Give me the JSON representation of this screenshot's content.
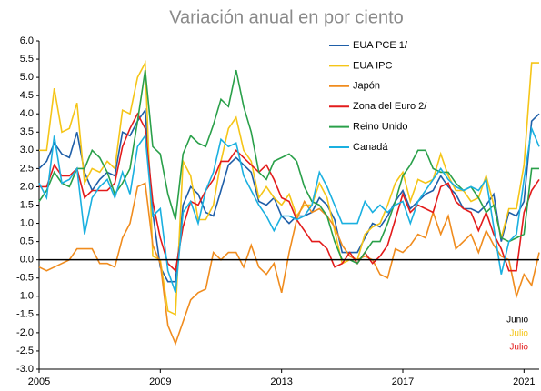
{
  "chart_data": {
    "type": "line",
    "title": "Variación anual en por ciento",
    "x": [
      2005,
      2005.25,
      2005.5,
      2005.75,
      2006,
      2006.25,
      2006.5,
      2006.75,
      2007,
      2007.25,
      2007.5,
      2007.75,
      2008,
      2008.25,
      2008.5,
      2008.75,
      2009,
      2009.25,
      2009.5,
      2009.75,
      2010,
      2010.25,
      2010.5,
      2010.75,
      2011,
      2011.25,
      2011.5,
      2011.75,
      2012,
      2012.25,
      2012.5,
      2012.75,
      2013,
      2013.25,
      2013.5,
      2013.75,
      2014,
      2014.25,
      2014.5,
      2014.75,
      2015,
      2015.25,
      2015.5,
      2015.75,
      2016,
      2016.25,
      2016.5,
      2016.75,
      2017,
      2017.25,
      2017.5,
      2017.75,
      2018,
      2018.25,
      2018.5,
      2018.75,
      2019,
      2019.25,
      2019.5,
      2019.75,
      2020,
      2020.25,
      2020.5,
      2020.75,
      2021,
      2021.25,
      2021.5
    ],
    "series": [
      {
        "name": "EUA PCE 1/",
        "color": "#1f5fa8",
        "values": [
          2.5,
          2.7,
          3.2,
          2.9,
          2.8,
          3.5,
          2.4,
          1.9,
          2.2,
          2.4,
          2.3,
          3.5,
          3.4,
          3.8,
          4.1,
          1.3,
          -0.2,
          -0.6,
          -0.6,
          1.5,
          2.0,
          1.8,
          1.3,
          1.2,
          1.9,
          2.6,
          2.8,
          2.6,
          2.4,
          1.6,
          1.5,
          1.7,
          1.2,
          1.0,
          1.2,
          1.2,
          1.3,
          1.7,
          1.5,
          1.1,
          0.2,
          0.2,
          0.2,
          0.6,
          1.0,
          0.9,
          1.2,
          1.6,
          1.9,
          1.4,
          1.6,
          1.8,
          1.9,
          2.3,
          2.0,
          1.8,
          1.4,
          1.4,
          1.3,
          1.5,
          1.8,
          0.5,
          1.3,
          1.2,
          1.6,
          3.8,
          4.0
        ]
      },
      {
        "name": "EUA IPC",
        "color": "#f5c518",
        "values": [
          3.0,
          3.0,
          4.7,
          3.5,
          3.6,
          4.3,
          2.1,
          2.5,
          2.4,
          2.7,
          2.5,
          4.1,
          4.0,
          5.0,
          5.4,
          0.1,
          0.0,
          -1.4,
          -1.5,
          2.7,
          2.3,
          1.1,
          1.1,
          1.5,
          2.7,
          3.6,
          3.9,
          3.0,
          2.7,
          1.7,
          2.0,
          1.7,
          1.5,
          1.8,
          1.2,
          1.5,
          1.5,
          2.1,
          1.7,
          0.8,
          -0.1,
          0.0,
          0.0,
          0.7,
          0.9,
          1.0,
          1.5,
          2.1,
          2.4,
          1.6,
          2.2,
          2.1,
          2.2,
          2.9,
          2.3,
          1.9,
          1.9,
          1.6,
          1.7,
          2.3,
          1.5,
          0.6,
          1.4,
          1.4,
          2.6,
          5.4,
          5.4
        ]
      },
      {
        "name": "Japón",
        "color": "#f08c1e",
        "values": [
          -0.2,
          -0.3,
          -0.2,
          -0.1,
          0.0,
          0.3,
          0.3,
          0.3,
          -0.1,
          -0.1,
          -0.2,
          0.6,
          1.0,
          2.0,
          2.1,
          0.4,
          -0.1,
          -1.8,
          -2.3,
          -1.7,
          -1.1,
          -0.9,
          -0.8,
          0.2,
          0.0,
          0.2,
          0.2,
          -0.2,
          0.4,
          -0.2,
          -0.4,
          -0.1,
          -0.9,
          0.2,
          1.1,
          1.6,
          1.3,
          1.4,
          1.2,
          0.9,
          0.4,
          0.1,
          0.0,
          0.1,
          0.0,
          -0.4,
          -0.5,
          0.3,
          0.2,
          0.4,
          0.7,
          0.6,
          1.3,
          0.7,
          1.2,
          0.3,
          0.5,
          0.7,
          0.2,
          0.8,
          0.4,
          0.1,
          0.0,
          -1.0,
          -0.4,
          -0.7,
          0.2
        ]
      },
      {
        "name": "Zona del Euro 2/",
        "color": "#e31b1b",
        "values": [
          2.0,
          2.0,
          2.6,
          2.3,
          2.3,
          2.5,
          1.7,
          1.9,
          1.9,
          1.9,
          2.1,
          3.1,
          3.6,
          4.0,
          3.6,
          1.6,
          0.6,
          -0.1,
          -0.3,
          0.9,
          1.6,
          1.5,
          1.9,
          2.2,
          2.7,
          2.7,
          3.0,
          2.8,
          2.6,
          2.4,
          2.6,
          2.2,
          1.7,
          1.6,
          1.1,
          0.8,
          0.5,
          0.5,
          0.3,
          -0.2,
          -0.1,
          0.2,
          -0.1,
          0.2,
          -0.1,
          0.1,
          0.4,
          1.1,
          1.8,
          1.3,
          1.5,
          1.4,
          1.3,
          2.0,
          2.1,
          1.6,
          1.4,
          1.3,
          0.8,
          1.3,
          0.7,
          0.3,
          -0.3,
          -0.3,
          1.3,
          1.9,
          2.2
        ]
      },
      {
        "name": "Reino Unido",
        "color": "#2aa04a",
        "values": [
          1.6,
          1.9,
          2.4,
          2.1,
          2.0,
          2.5,
          2.5,
          3.0,
          2.8,
          2.4,
          1.8,
          2.1,
          2.5,
          3.8,
          5.2,
          3.1,
          2.9,
          1.8,
          1.1,
          2.9,
          3.4,
          3.2,
          3.1,
          3.7,
          4.4,
          4.2,
          5.2,
          4.2,
          3.5,
          2.4,
          2.2,
          2.7,
          2.8,
          2.9,
          2.7,
          2.0,
          1.6,
          1.5,
          1.2,
          0.5,
          0.0,
          0.0,
          -0.1,
          0.2,
          0.5,
          0.5,
          1.0,
          1.6,
          2.3,
          2.6,
          3.0,
          3.0,
          2.5,
          2.4,
          2.4,
          2.1,
          1.9,
          2.0,
          1.7,
          1.3,
          1.5,
          0.6,
          0.5,
          0.6,
          0.7,
          2.5,
          2.5
        ]
      },
      {
        "name": "Canadá",
        "color": "#1ab0e0",
        "values": [
          2.1,
          1.7,
          3.4,
          2.1,
          2.2,
          2.5,
          0.7,
          1.7,
          2.0,
          2.2,
          1.7,
          2.4,
          1.8,
          3.1,
          3.4,
          1.2,
          1.4,
          -0.3,
          -0.9,
          1.3,
          1.6,
          1.0,
          1.9,
          2.4,
          3.3,
          3.1,
          3.2,
          2.3,
          1.9,
          1.5,
          1.2,
          0.8,
          1.2,
          1.2,
          1.1,
          1.2,
          1.5,
          2.4,
          2.0,
          1.5,
          1.0,
          1.0,
          1.0,
          1.6,
          1.3,
          1.5,
          1.3,
          1.5,
          1.6,
          1.0,
          1.6,
          1.9,
          2.2,
          2.5,
          2.2,
          2.0,
          1.9,
          2.0,
          1.9,
          2.2,
          0.9,
          -0.4,
          0.5,
          0.7,
          2.2,
          3.6,
          3.1
        ]
      }
    ],
    "xlim": [
      2005,
      2021.5
    ],
    "xticks": [
      2005,
      2009,
      2013,
      2017,
      2021
    ],
    "ylim": [
      -3,
      6
    ],
    "yticks": [
      {
        "value": -3,
        "label": "-3.0"
      },
      {
        "value": -2.5,
        "label": "-2.5"
      },
      {
        "value": -2,
        "label": "-2.0"
      },
      {
        "value": -1.5,
        "label": "-1.5"
      },
      {
        "value": -1,
        "label": "-1.0"
      },
      {
        "value": -0.5,
        "label": "-0.5"
      },
      {
        "value": 0,
        "label": "0.0"
      },
      {
        "value": 0.5,
        "label": "0.5"
      },
      {
        "value": 1,
        "label": "1.0"
      },
      {
        "value": 1.5,
        "label": "1.5"
      },
      {
        "value": 2,
        "label": "2.0"
      },
      {
        "value": 2.5,
        "label": "2.5"
      },
      {
        "value": 3,
        "label": "3.0"
      },
      {
        "value": 3.5,
        "label": "3.5"
      },
      {
        "value": 4,
        "label": "4.0"
      },
      {
        "value": 4.5,
        "label": "4.5"
      },
      {
        "value": 5,
        "label": "5.0"
      },
      {
        "value": 5.5,
        "label": "5.5"
      },
      {
        "value": 6,
        "label": "6.0"
      }
    ],
    "annotations": [
      {
        "text": "Junio",
        "color": "#000000"
      },
      {
        "text": "Julio",
        "color": "#f5c518"
      },
      {
        "text": "Julio",
        "color": "#e31b1b"
      }
    ],
    "legend": "top-right",
    "grid": false
  }
}
